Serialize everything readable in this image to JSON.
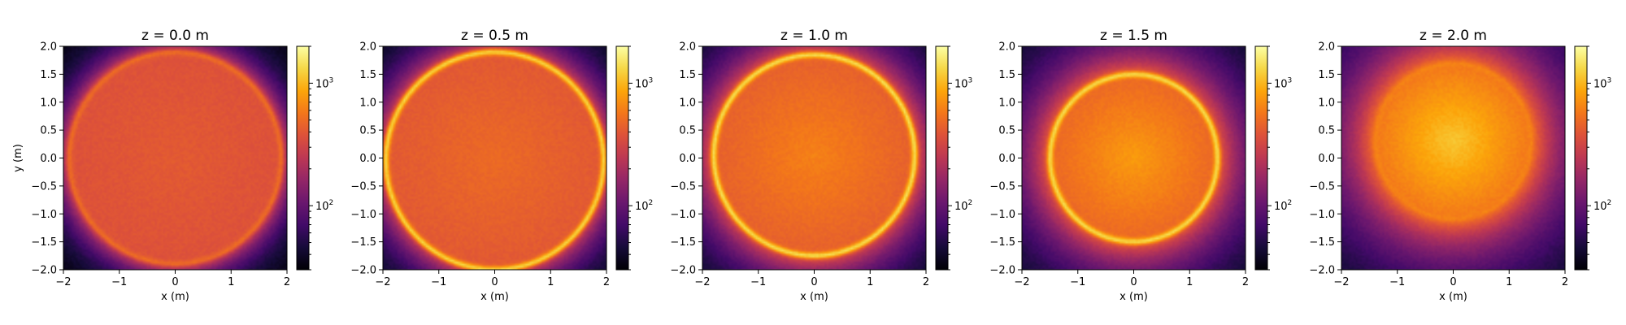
{
  "chart_data": {
    "type": "heatmap",
    "colormap": "inferno",
    "colorbar_scale": "log",
    "xlabel": "x (m)",
    "ylabel": "y (m)",
    "xlim": [
      -2,
      2
    ],
    "ylim": [
      -2,
      2
    ],
    "x_ticks": [
      "−2",
      "−1",
      "0",
      "1",
      "2"
    ],
    "y_ticks": [
      "2.0",
      "1.5",
      "1.0",
      "0.5",
      "0.0",
      "−0.5",
      "−1.0",
      "−1.5",
      "−2.0"
    ],
    "colorbar_range": [
      30,
      2000
    ],
    "colorbar_ticks": [
      {
        "base": "10",
        "exp": "3",
        "value": 1000
      },
      {
        "base": "10",
        "exp": "2",
        "value": 100
      }
    ],
    "panels": [
      {
        "title": "z = 0.0 m",
        "z": 0.0,
        "cx": 0.0,
        "cy": 0.0,
        "r": 1.9,
        "ring": 0.15,
        "spread": 0.1,
        "level": 0.6
      },
      {
        "title": "z = 0.5 m",
        "z": 0.5,
        "cx": 0.0,
        "cy": -0.05,
        "r": 1.95,
        "ring": 0.55,
        "spread": 0.2,
        "level": 0.62
      },
      {
        "title": "z = 1.0 m",
        "z": 1.0,
        "cx": 0.0,
        "cy": 0.05,
        "r": 1.8,
        "ring": 0.55,
        "spread": 0.35,
        "level": 0.64
      },
      {
        "title": "z = 1.5 m",
        "z": 1.5,
        "cx": 0.0,
        "cy": 0.0,
        "r": 1.5,
        "ring": 0.5,
        "spread": 0.5,
        "level": 0.66
      },
      {
        "title": "z = 2.0 m",
        "z": 2.0,
        "cx": 0.0,
        "cy": 0.3,
        "r": 1.4,
        "ring": 0.05,
        "spread": 0.7,
        "level": 0.7
      }
    ]
  }
}
